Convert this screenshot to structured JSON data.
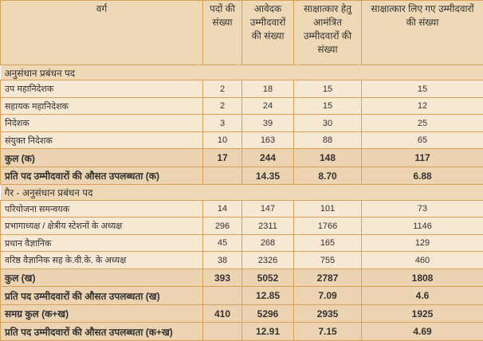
{
  "headers": [
    "वर्ग",
    "पदों की संख्या",
    "आवेदक उम्मीदवारों की संख्या",
    "साक्षात्कार हेतु आमंत्रित उम्मीदवारों की संख्या",
    "साक्षात्कार लिए गए उम्मीदवारों की संख्या"
  ],
  "sections": [
    {
      "title": "अनुसंधान प्रबंधन पद",
      "rows": [
        [
          "उप महानिदेशक",
          "2",
          "18",
          "15",
          "15"
        ],
        [
          "सहायक महानिदेशक",
          "2",
          "24",
          "15",
          "12"
        ],
        [
          "निदेशक",
          "3",
          "39",
          "30",
          "25"
        ],
        [
          "संयुक्त निदेशक",
          "10",
          "163",
          "88",
          "65"
        ]
      ],
      "total": [
        "कुल (क)",
        "17",
        "244",
        "148",
        "117"
      ],
      "avg": [
        "प्रति पद उम्मीदवारों की औसत उपलब्धता (क)",
        "",
        "14.35",
        "8.70",
        "6.88"
      ]
    },
    {
      "title": "गैर - अनुसंधान प्रबंधन पद",
      "rows": [
        [
          "परियोजना समन्वयक",
          "14",
          "147",
          "101",
          "73"
        ],
        [
          "प्रभागाध्यक्ष / क्षेत्रीय स्टेशनों के अध्यक्ष",
          "296",
          "2311",
          "1766",
          "1146"
        ],
        [
          "प्रधान वैज्ञानिक",
          "45",
          "268",
          "165",
          "129"
        ],
        [
          "वरिष्ठ वैज्ञानिक सह के.वी.के. के अध्यक्ष",
          "38",
          "2326",
          "755",
          "460"
        ]
      ],
      "total": [
        "कुल (ख)",
        "393",
        "5052",
        "2787",
        "1808"
      ],
      "avg": [
        "प्रति पद उम्मीदवारों की औसत उपलब्धता (ख)",
        "",
        "12.85",
        "7.09",
        "4.6"
      ]
    }
  ],
  "grand_total": [
    "समग्र कुल (क+ख)",
    "410",
    "5296",
    "2935",
    "1925"
  ],
  "grand_avg": [
    "प्रति पद उम्मीदवारों की औसत उपलब्धता (क+ख)",
    "",
    "12.91",
    "7.15",
    "4.69"
  ],
  "colors": {
    "border": "#d9a05a",
    "header_bg": "#efd8b6",
    "row_bg": "#f7e8d4",
    "total_bg": "#ecd3b1"
  }
}
